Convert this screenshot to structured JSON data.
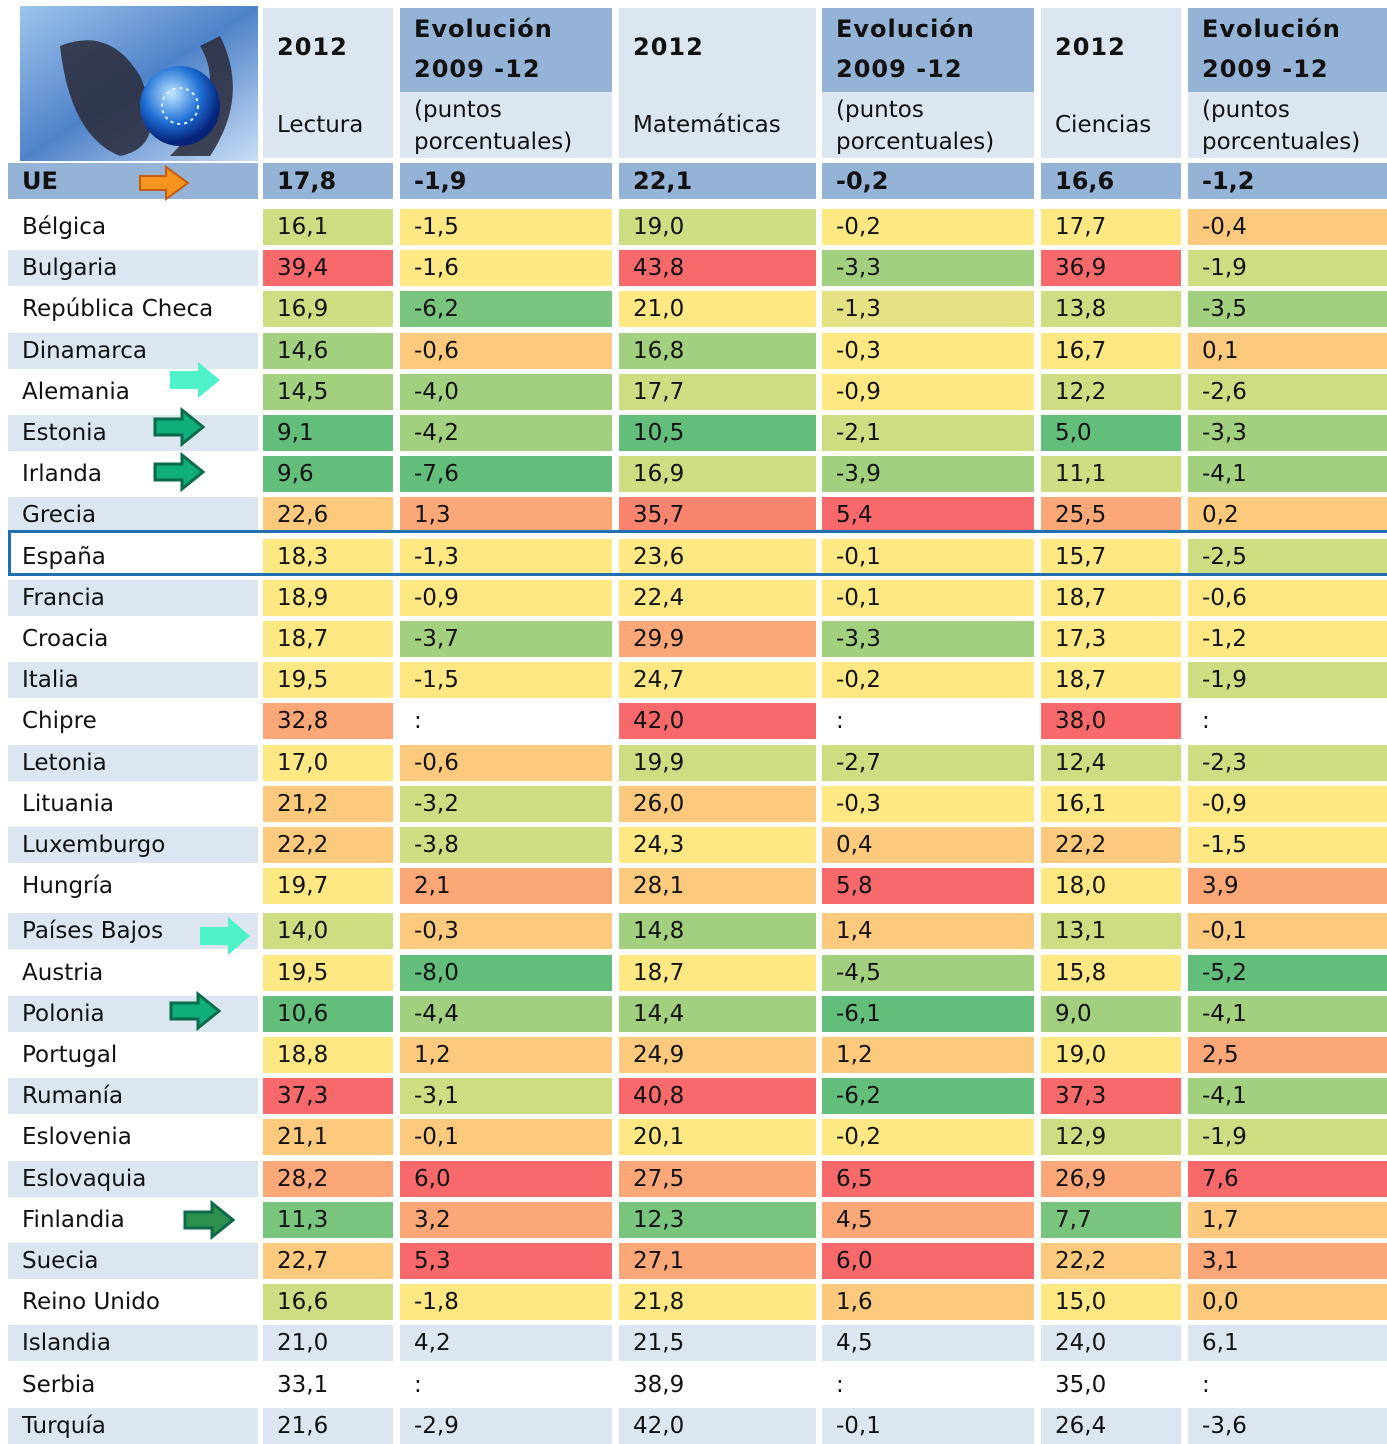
{
  "header": {
    "columns": [
      {
        "year": "2012",
        "label": "Lectura"
      },
      {
        "title": "Evolución",
        "period": "2009 -12",
        "unit": "(puntos porcentuales)"
      },
      {
        "year": "2012",
        "label": "Matemáticas"
      },
      {
        "title": "Evolución",
        "period": "2009 -12",
        "unit": "(puntos porcentuales)"
      },
      {
        "year": "2012",
        "label": "Ciencias"
      },
      {
        "title": "Evolución",
        "period": "2009 -12",
        "unit": "(puntos porcentuales)"
      }
    ]
  },
  "eu": {
    "label": "UE",
    "cells": [
      "17,8",
      "-1,9",
      "22,1",
      "-0,2",
      "16,6",
      "-1,2"
    ]
  },
  "rows": [
    {
      "country": "Bélgica",
      "cells": [
        "16,1",
        "-1,5",
        "19,0",
        "-0,2",
        "17,7",
        "-0,4"
      ],
      "colors": [
        "#cddd82",
        "#fee883",
        "#cddd82",
        "#fee883",
        "#fee883",
        "#fdca7d"
      ]
    },
    {
      "country": "Bulgaria",
      "cells": [
        "39,4",
        "-1,6",
        "43,8",
        "-3,3",
        "36,9",
        "-1,9"
      ],
      "colors": [
        "#f8696b",
        "#fee883",
        "#f8696b",
        "#a2d07f",
        "#f8696b",
        "#cddd82"
      ]
    },
    {
      "country": "República Checa",
      "cells": [
        "16,9",
        "-6,2",
        "21,0",
        "-1,3",
        "13,8",
        "-3,5"
      ],
      "colors": [
        "#cddd82",
        "#7ac57d",
        "#fee883",
        "#e4e283",
        "#cddd82",
        "#a2d07f"
      ]
    },
    {
      "country": "Dinamarca",
      "cells": [
        "14,6",
        "-0,6",
        "16,8",
        "-0,3",
        "16,7",
        "0,1"
      ],
      "colors": [
        "#a2d07f",
        "#fdca7d",
        "#a2d07f",
        "#fee883",
        "#fee883",
        "#fdca7d"
      ]
    },
    {
      "country": "Alemania",
      "cells": [
        "14,5",
        "-4,0",
        "17,7",
        "-0,9",
        "12,2",
        "-2,6"
      ],
      "colors": [
        "#a2d07f",
        "#a2d07f",
        "#cddd82",
        "#fee883",
        "#cddd82",
        "#cddd82"
      ]
    },
    {
      "country": "Estonia",
      "cells": [
        "9,1",
        "-4,2",
        "10,5",
        "-2,1",
        "5,0",
        "-3,3"
      ],
      "colors": [
        "#63be7b",
        "#a2d07f",
        "#63be7b",
        "#cddd82",
        "#63be7b",
        "#a2d07f"
      ]
    },
    {
      "country": "Irlanda",
      "cells": [
        "9,6",
        "-7,6",
        "16,9",
        "-3,9",
        "11,1",
        "-4,1"
      ],
      "colors": [
        "#63be7b",
        "#63be7b",
        "#cddd82",
        "#a2d07f",
        "#cddd82",
        "#a2d07f"
      ]
    },
    {
      "country": "Grecia",
      "cells": [
        "22,6",
        "1,3",
        "35,7",
        "5,4",
        "25,5",
        "0,2"
      ],
      "colors": [
        "#fdca7d",
        "#fba777",
        "#f98570",
        "#f8696b",
        "#fba777",
        "#fdca7d"
      ]
    },
    {
      "country": "España",
      "cells": [
        "18,3",
        "-1,3",
        "23,6",
        "-0,1",
        "15,7",
        "-2,5"
      ],
      "colors": [
        "#fee883",
        "#fee883",
        "#fee883",
        "#fee883",
        "#fee883",
        "#cddd82"
      ]
    },
    {
      "country": "Francia",
      "cells": [
        "18,9",
        "-0,9",
        "22,4",
        "-0,1",
        "18,7",
        "-0,6"
      ],
      "colors": [
        "#fee883",
        "#fee883",
        "#fee883",
        "#fee883",
        "#fee883",
        "#fee883"
      ]
    },
    {
      "country": "Croacia",
      "cells": [
        "18,7",
        "-3,7",
        "29,9",
        "-3,3",
        "17,3",
        "-1,2"
      ],
      "colors": [
        "#fee883",
        "#a2d07f",
        "#fba777",
        "#a2d07f",
        "#fee883",
        "#fee883"
      ]
    },
    {
      "country": "Italia",
      "cells": [
        "19,5",
        "-1,5",
        "24,7",
        "-0,2",
        "18,7",
        "-1,9"
      ],
      "colors": [
        "#fee883",
        "#fee883",
        "#fee883",
        "#fee883",
        "#fee883",
        "#cddd82"
      ]
    },
    {
      "country": "Chipre",
      "cells": [
        "32,8",
        ":",
        "42,0",
        ":",
        "38,0",
        ":"
      ],
      "colors": [
        "#fba777",
        null,
        "#f8696b",
        null,
        "#f8696b",
        null
      ]
    },
    {
      "country": "Letonia",
      "cells": [
        "17,0",
        "-0,6",
        "19,9",
        "-2,7",
        "12,4",
        "-2,3"
      ],
      "colors": [
        "#fee883",
        "#fdca7d",
        "#cddd82",
        "#cddd82",
        "#cddd82",
        "#cddd82"
      ]
    },
    {
      "country": "Lituania",
      "cells": [
        "21,2",
        "-3,2",
        "26,0",
        "-0,3",
        "16,1",
        "-0,9"
      ],
      "colors": [
        "#fdca7d",
        "#cddd82",
        "#fdca7d",
        "#fee883",
        "#fee883",
        "#fee883"
      ]
    },
    {
      "country": "Luxemburgo",
      "cells": [
        "22,2",
        "-3,8",
        "24,3",
        "0,4",
        "22,2",
        "-1,5"
      ],
      "colors": [
        "#fdca7d",
        "#cddd82",
        "#fee883",
        "#fdca7d",
        "#fdca7d",
        "#fee883"
      ]
    },
    {
      "country": "Hungría",
      "cells": [
        "19,7",
        "2,1",
        "28,1",
        "5,8",
        "18,0",
        "3,9"
      ],
      "colors": [
        "#fee883",
        "#fba777",
        "#fdca7d",
        "#f8696b",
        "#fee883",
        "#fba777"
      ]
    },
    {
      "country": "Países Bajos",
      "cells": [
        "14,0",
        "-0,3",
        "14,8",
        "1,4",
        "13,1",
        "-0,1"
      ],
      "colors": [
        "#cddd82",
        "#fdca7d",
        "#a2d07f",
        "#fdca7d",
        "#cddd82",
        "#fdca7d"
      ]
    },
    {
      "country": "Austria",
      "cells": [
        "19,5",
        "-8,0",
        "18,7",
        "-4,5",
        "15,8",
        "-5,2"
      ],
      "colors": [
        "#fee883",
        "#63be7b",
        "#fee883",
        "#a2d07f",
        "#fee883",
        "#63be7b"
      ]
    },
    {
      "country": "Polonia",
      "cells": [
        "10,6",
        "-4,4",
        "14,4",
        "-6,1",
        "9,0",
        "-4,1"
      ],
      "colors": [
        "#63be7b",
        "#a2d07f",
        "#a2d07f",
        "#63be7b",
        "#a2d07f",
        "#a2d07f"
      ]
    },
    {
      "country": "Portugal",
      "cells": [
        "18,8",
        "1,2",
        "24,9",
        "1,2",
        "19,0",
        "2,5"
      ],
      "colors": [
        "#fee883",
        "#fdca7d",
        "#fdca7d",
        "#fdca7d",
        "#fee883",
        "#fba777"
      ]
    },
    {
      "country": "Rumanía",
      "cells": [
        "37,3",
        "-3,1",
        "40,8",
        "-6,2",
        "37,3",
        "-4,1"
      ],
      "colors": [
        "#f8696b",
        "#cddd82",
        "#f8696b",
        "#63be7b",
        "#f8696b",
        "#a2d07f"
      ]
    },
    {
      "country": "Eslovenia",
      "cells": [
        "21,1",
        "-0,1",
        "20,1",
        "-0,2",
        "12,9",
        "-1,9"
      ],
      "colors": [
        "#fdca7d",
        "#fdca7d",
        "#fee883",
        "#fee883",
        "#cddd82",
        "#cddd82"
      ]
    },
    {
      "country": "Eslovaquia",
      "cells": [
        "28,2",
        "6,0",
        "27,5",
        "6,5",
        "26,9",
        "7,6"
      ],
      "colors": [
        "#fba777",
        "#f8696b",
        "#fba777",
        "#f8696b",
        "#fba777",
        "#f8696b"
      ]
    },
    {
      "country": "Finlandia",
      "cells": [
        "11,3",
        "3,2",
        "12,3",
        "4,5",
        "7,7",
        "1,7"
      ],
      "colors": [
        "#7ac57d",
        "#fba777",
        "#7ac57d",
        "#fba777",
        "#7ac57d",
        "#fdca7d"
      ]
    },
    {
      "country": "Suecia",
      "cells": [
        "22,7",
        "5,3",
        "27,1",
        "6,0",
        "22,2",
        "3,1"
      ],
      "colors": [
        "#fdca7d",
        "#f8696b",
        "#fba777",
        "#f8696b",
        "#fdca7d",
        "#fba777"
      ]
    },
    {
      "country": "Reino Unido",
      "cells": [
        "16,6",
        "-1,8",
        "21,8",
        "1,6",
        "15,0",
        "0,0"
      ],
      "colors": [
        "#cddd82",
        "#fee883",
        "#fee883",
        "#fdca7d",
        "#fee883",
        "#fdca7d"
      ]
    },
    {
      "country": "Islandia",
      "cells": [
        "21,0",
        "4,2",
        "21,5",
        "4,5",
        "24,0",
        "6,1"
      ],
      "colors": [
        null,
        null,
        null,
        null,
        null,
        null
      ]
    },
    {
      "country": "Serbia",
      "cells": [
        "33,1",
        ":",
        "38,9",
        ":",
        "35,0",
        ":"
      ],
      "colors": [
        null,
        null,
        null,
        null,
        null,
        null
      ]
    },
    {
      "country": "Turquía",
      "cells": [
        "21,6",
        "-2,9",
        "42,0",
        "-0,1",
        "26,4",
        "-3,6"
      ],
      "colors": [
        null,
        null,
        null,
        null,
        null,
        null
      ]
    }
  ]
}
